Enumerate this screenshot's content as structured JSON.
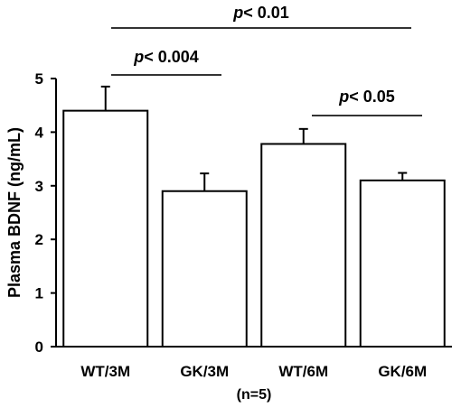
{
  "chart_data": {
    "type": "bar",
    "categories": [
      "WT/3M",
      "GK/3M",
      "WT/6M",
      "GK/6M"
    ],
    "values": [
      4.4,
      2.9,
      3.78,
      3.1
    ],
    "error_upper": [
      0.45,
      0.33,
      0.28,
      0.14
    ],
    "ylabel": "Plasma BDNF (ng/mL)",
    "xnote": "(n=5)",
    "ylim": [
      0,
      5
    ],
    "yticks": [
      "0",
      "1",
      "2",
      "3",
      "4",
      "5"
    ],
    "grid": false,
    "bar_fill": "#ffffff",
    "bar_stroke": "#000000",
    "bracket_color": "#333333",
    "annotations": [
      {
        "p_prefix": "p",
        "p_rest": "< 0.01",
        "from": 0,
        "to": 3
      },
      {
        "p_prefix": "p",
        "p_rest": "< 0.004",
        "from": 0,
        "to": 1
      },
      {
        "p_prefix": "p",
        "p_rest": "< 0.05",
        "from": 2,
        "to": 3
      }
    ]
  }
}
